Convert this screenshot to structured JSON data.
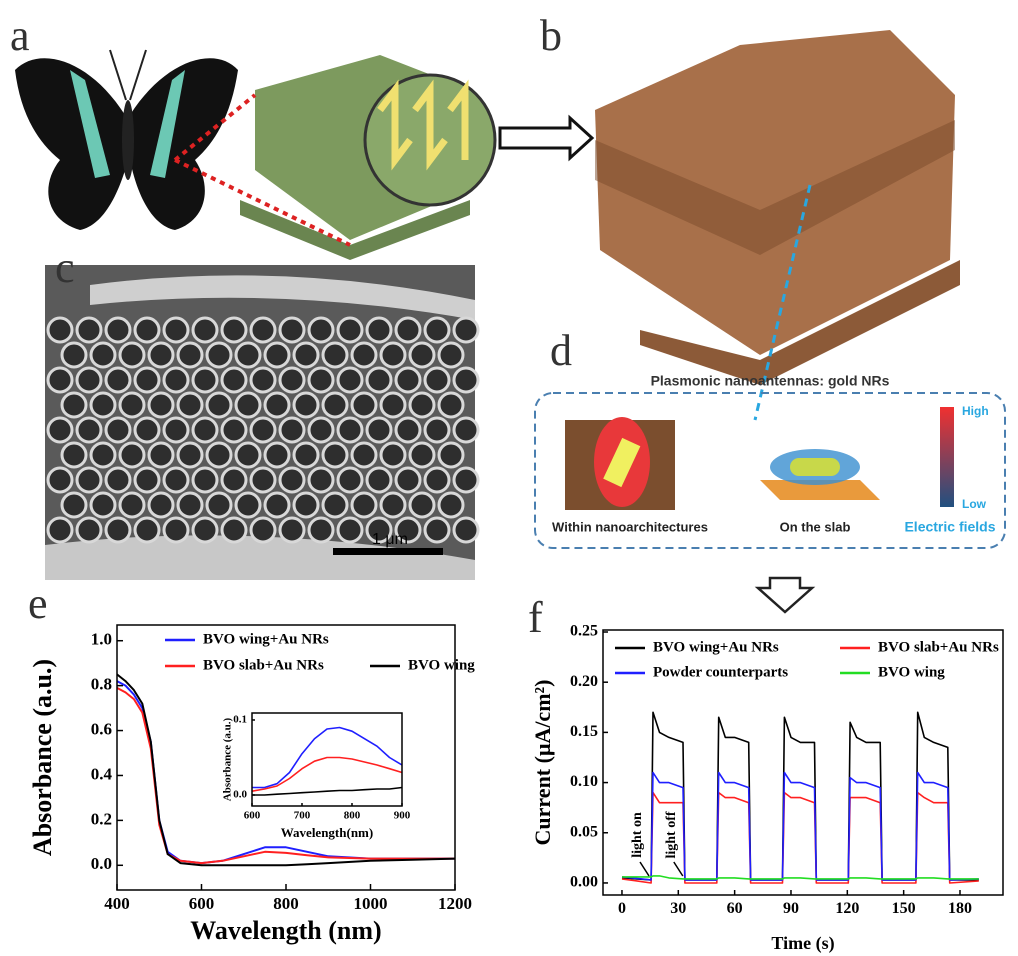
{
  "panel_labels": [
    "a",
    "b",
    "c",
    "d",
    "e",
    "f"
  ],
  "scale_bar": "1 μm",
  "diagram_d": {
    "title": "Plasmonic nanoantennas: gold NRs",
    "captions": [
      "Within nanoarchitectures",
      "On the slab"
    ],
    "colorbar": {
      "high": "High",
      "low": "Low",
      "label": "Electric fields"
    }
  },
  "annotations_f": [
    "light on",
    "light off"
  ],
  "chart_data": [
    {
      "type": "line",
      "xlabel": "Wavelength (nm)",
      "ylabel": "Absorbance (a.u.)",
      "x": [
        400,
        420,
        440,
        460,
        480,
        500,
        520,
        550,
        600,
        650,
        700,
        750,
        800,
        850,
        900,
        1000,
        1100,
        1200
      ],
      "series": [
        {
          "name": "BVO wing+Au NRs",
          "color": "#1f1fff",
          "values": [
            0.82,
            0.8,
            0.76,
            0.7,
            0.55,
            0.2,
            0.06,
            0.02,
            0.01,
            0.02,
            0.05,
            0.08,
            0.08,
            0.06,
            0.04,
            0.03,
            0.03,
            0.03
          ]
        },
        {
          "name": "BVO slab+Au NRs",
          "color": "#ff2020",
          "values": [
            0.79,
            0.77,
            0.74,
            0.68,
            0.52,
            0.18,
            0.05,
            0.02,
            0.01,
            0.02,
            0.04,
            0.06,
            0.055,
            0.045,
            0.035,
            0.03,
            0.03,
            0.03
          ]
        },
        {
          "name": "BVO wing",
          "color": "#000000",
          "values": [
            0.85,
            0.82,
            0.78,
            0.72,
            0.55,
            0.2,
            0.05,
            0.01,
            0.0,
            0.0,
            0.0,
            0.0,
            0.0,
            0.005,
            0.01,
            0.02,
            0.025,
            0.03
          ]
        }
      ],
      "xlim": [
        400,
        1200
      ],
      "xticks": [
        400,
        600,
        800,
        1000,
        1200
      ],
      "ylim": [
        -0.11,
        1.07
      ],
      "yticks": [
        {
          "value": 0,
          "label": "0.0"
        },
        0.2,
        0.4,
        0.6,
        0.8,
        {
          "value": 1,
          "label": "1.0"
        }
      ]
    },
    {
      "type": "line",
      "xlabel": "Wavelength(nm)",
      "ylabel": "Absorbance (a.u.)",
      "x": [
        600,
        625,
        650,
        675,
        700,
        725,
        750,
        775,
        800,
        825,
        850,
        875,
        900
      ],
      "series": [
        {
          "color": "#1f1fff",
          "values": [
            0.01,
            0.01,
            0.015,
            0.03,
            0.055,
            0.075,
            0.088,
            0.09,
            0.085,
            0.075,
            0.065,
            0.05,
            0.04
          ]
        },
        {
          "color": "#ff2020",
          "values": [
            0.005,
            0.008,
            0.012,
            0.022,
            0.035,
            0.045,
            0.05,
            0.05,
            0.048,
            0.044,
            0.04,
            0.035,
            0.03
          ]
        },
        {
          "color": "#000000",
          "values": [
            0.0,
            0.0,
            0.001,
            0.002,
            0.003,
            0.004,
            0.005,
            0.006,
            0.006,
            0.007,
            0.008,
            0.008,
            0.01
          ]
        }
      ],
      "xlim": [
        600,
        900
      ],
      "xticks": [
        600,
        700,
        800,
        900
      ],
      "ylim": [
        -0.0147,
        0.1093
      ],
      "yticks": [
        {
          "value": 0,
          "label": "0.0"
        },
        0.1
      ]
    },
    {
      "type": "line",
      "xlabel": "Time (s)",
      "ylabel": "Current (μA/cm²)",
      "x": [
        0,
        15.5,
        16.5,
        20,
        25,
        32.5,
        33.5,
        50.5,
        51.5,
        55,
        60,
        67.5,
        68.5,
        85.5,
        86.5,
        90,
        95,
        102.5,
        103.5,
        120.5,
        121.5,
        125,
        130,
        137.5,
        138.5,
        156.5,
        157.5,
        161,
        166,
        173.5,
        174.5,
        190
      ],
      "series": [
        {
          "name": "BVO wing+Au NRs",
          "color": "#000000",
          "values": [
            0.005,
            0.003,
            0.17,
            0.15,
            0.145,
            0.14,
            0.003,
            0.003,
            0.165,
            0.145,
            0.145,
            0.14,
            0.003,
            0.003,
            0.165,
            0.145,
            0.14,
            0.14,
            0.003,
            0.003,
            0.16,
            0.145,
            0.14,
            0.14,
            0.003,
            0.003,
            0.17,
            0.145,
            0.14,
            0.135,
            0.003,
            0.003
          ]
        },
        {
          "name": "BVO slab+Au NRs",
          "color": "#ff2020",
          "values": [
            0.004,
            0.0,
            0.09,
            0.08,
            0.08,
            0.08,
            0.0,
            0.0,
            0.09,
            0.085,
            0.085,
            0.08,
            0.0,
            0.0,
            0.09,
            0.085,
            0.085,
            0.08,
            0.0,
            0.0,
            0.085,
            0.085,
            0.085,
            0.08,
            0.0,
            0.0,
            0.09,
            0.085,
            0.08,
            0.08,
            0.0,
            0.002
          ]
        },
        {
          "name": "Powder counterparts",
          "color": "#1f1fff",
          "values": [
            0.006,
            0.003,
            0.11,
            0.1,
            0.1,
            0.095,
            0.003,
            0.003,
            0.11,
            0.1,
            0.1,
            0.095,
            0.003,
            0.003,
            0.11,
            0.1,
            0.1,
            0.095,
            0.003,
            0.003,
            0.105,
            0.1,
            0.1,
            0.095,
            0.003,
            0.003,
            0.11,
            0.1,
            0.1,
            0.095,
            0.003,
            0.004
          ]
        },
        {
          "name": "BVO wing",
          "color": "#22dd22",
          "values": [
            0.006,
            0.006,
            0.007,
            0.007,
            0.005,
            0.004,
            0.004,
            0.004,
            0.005,
            0.005,
            0.005,
            0.004,
            0.004,
            0.004,
            0.005,
            0.005,
            0.005,
            0.004,
            0.004,
            0.004,
            0.005,
            0.005,
            0.005,
            0.004,
            0.004,
            0.004,
            0.005,
            0.005,
            0.005,
            0.004,
            0.004,
            0.004
          ]
        }
      ],
      "xlim": [
        -10.1,
        202.9
      ],
      "xticks": [
        0,
        30,
        60,
        90,
        120,
        150,
        180
      ],
      "ylim": [
        -0.012,
        0.252
      ],
      "yticks": [
        {
          "value": 0,
          "label": "0.00"
        },
        {
          "value": 0.05,
          "label": "0.05"
        },
        {
          "value": 0.1,
          "label": "0.10"
        },
        {
          "value": 0.15,
          "label": "0.15"
        },
        {
          "value": 0.2,
          "label": "0.20"
        },
        {
          "value": 0.25,
          "label": "0.25"
        }
      ]
    }
  ]
}
